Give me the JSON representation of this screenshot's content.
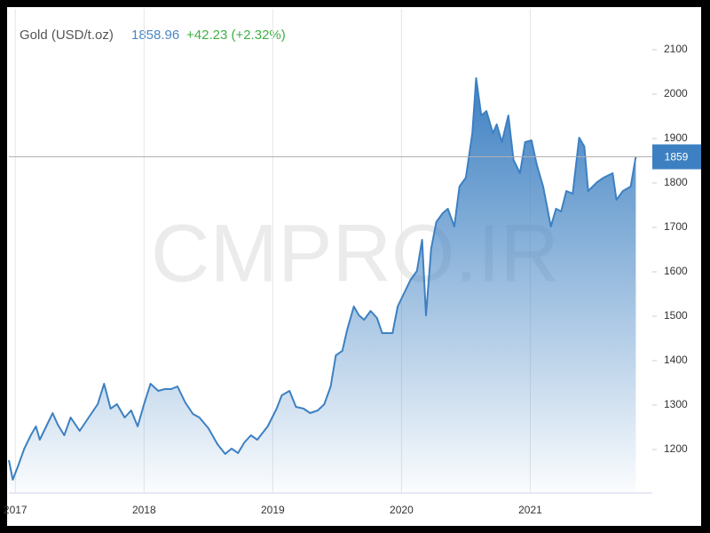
{
  "chart_data": {
    "type": "area",
    "watermark": "CMPRO.IR",
    "price": 1858.96,
    "change": "+42.23 (+2.32%)",
    "price_line": {
      "value": 1858.96,
      "label": "1859"
    },
    "x": [
      2016.95,
      2016.98,
      2017.02,
      2017.07,
      2017.12,
      2017.16,
      2017.19,
      2017.24,
      2017.29,
      2017.33,
      2017.38,
      2017.43,
      2017.5,
      2017.57,
      2017.64,
      2017.69,
      2017.74,
      2017.79,
      2017.85,
      2017.9,
      2017.95,
      2018.0,
      2018.05,
      2018.11,
      2018.16,
      2018.21,
      2018.26,
      2018.32,
      2018.38,
      2018.43,
      2018.5,
      2018.57,
      2018.63,
      2018.68,
      2018.73,
      2018.78,
      2018.83,
      2018.88,
      2018.96,
      2019.03,
      2019.07,
      2019.13,
      2019.18,
      2019.24,
      2019.29,
      2019.35,
      2019.4,
      2019.45,
      2019.49,
      2019.54,
      2019.58,
      2019.63,
      2019.67,
      2019.71,
      2019.76,
      2019.81,
      2019.85,
      2019.93,
      2019.97,
      2020.02,
      2020.07,
      2020.12,
      2020.16,
      2020.19,
      2020.23,
      2020.27,
      2020.32,
      2020.36,
      2020.41,
      2020.45,
      2020.5,
      2020.55,
      2020.58,
      2020.62,
      2020.66,
      2020.71,
      2020.74,
      2020.78,
      2020.83,
      2020.87,
      2020.92,
      2020.96,
      2021.01,
      2021.05,
      2021.1,
      2021.16,
      2021.2,
      2021.24,
      2021.28,
      2021.33,
      2021.38,
      2021.42,
      2021.45,
      2021.52,
      2021.57,
      2021.64,
      2021.67,
      2021.72,
      2021.78,
      2021.82
    ],
    "series": [
      {
        "name": "Gold (USD/t.oz)",
        "color": "#3d80c2",
        "values": [
          1176,
          1132,
          1162,
          1202,
          1232,
          1252,
          1222,
          1252,
          1282,
          1256,
          1232,
          1272,
          1242,
          1272,
          1302,
          1348,
          1292,
          1302,
          1272,
          1288,
          1252,
          1302,
          1348,
          1332,
          1336,
          1336,
          1342,
          1306,
          1280,
          1272,
          1248,
          1212,
          1190,
          1202,
          1192,
          1216,
          1232,
          1222,
          1252,
          1292,
          1322,
          1332,
          1296,
          1292,
          1282,
          1288,
          1302,
          1342,
          1412,
          1422,
          1472,
          1522,
          1502,
          1492,
          1512,
          1496,
          1462,
          1462,
          1522,
          1552,
          1582,
          1602,
          1672,
          1502,
          1652,
          1712,
          1732,
          1742,
          1702,
          1792,
          1812,
          1912,
          2036,
          1952,
          1962,
          1912,
          1932,
          1892,
          1952,
          1852,
          1822,
          1892,
          1896,
          1842,
          1792,
          1702,
          1742,
          1736,
          1782,
          1776,
          1902,
          1882,
          1782,
          1802,
          1812,
          1822,
          1762,
          1782,
          1792,
          1858.96
        ]
      }
    ],
    "xlim": [
      2016.95,
      2021.9
    ],
    "xticks": [
      2017,
      2018,
      2019,
      2020,
      2021
    ],
    "ylim": [
      1102,
      2192
    ],
    "yticks": [
      1200,
      1300,
      1400,
      1500,
      1600,
      1700,
      1800,
      1900,
      2000,
      2100
    ],
    "grid": true
  }
}
